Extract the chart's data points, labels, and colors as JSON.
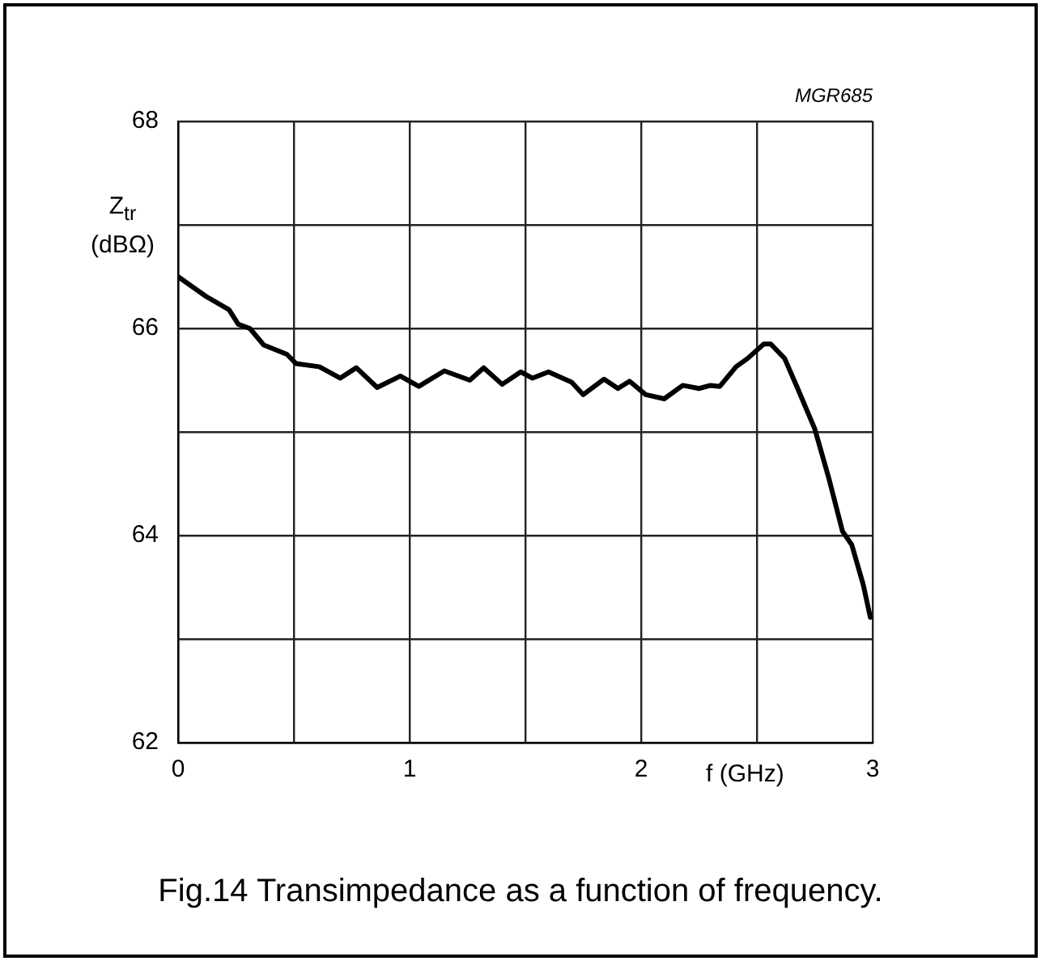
{
  "chart_data": {
    "type": "line",
    "xlabel": "f (GHz)",
    "ylabel": "Z$_{tr}$\n(dBΩ)",
    "annotations": [
      "MGR685",
      "Fig.14  Transimpedance as a function of frequency."
    ],
    "xlim": [
      0,
      3
    ],
    "ylim": [
      62,
      68
    ],
    "xticks": [
      0,
      {
        "value": 0.5,
        "label": null
      },
      1,
      {
        "value": 1.5,
        "label": null
      },
      2,
      {
        "value": 2.5,
        "label": null
      },
      3
    ],
    "yticks": [
      62,
      {
        "value": 63,
        "label": null
      },
      64,
      {
        "value": 65,
        "label": null
      },
      66,
      {
        "value": 67,
        "label": null
      },
      68
    ],
    "grid": true,
    "marker": "none",
    "line_style": "solid",
    "series": [
      {
        "color": "#000000",
        "x": [
          0,
          0.12,
          0.22,
          0.26,
          0.31,
          0.37,
          0.47,
          0.51,
          0.61,
          0.7,
          0.77,
          0.86,
          0.96,
          1.04,
          1.15,
          1.26,
          1.32,
          1.4,
          1.48,
          1.53,
          1.6,
          1.7,
          1.75,
          1.84,
          1.9,
          1.95,
          2.02,
          2.1,
          2.18,
          2.25,
          2.3,
          2.34,
          2.41,
          2.46,
          2.53,
          2.56,
          2.62,
          2.68,
          2.75,
          2.81,
          2.87,
          2.91,
          2.96,
          2.99
        ],
        "values": [
          66.5,
          66.31,
          66.18,
          66.04,
          66.0,
          65.84,
          65.75,
          65.66,
          65.63,
          65.52,
          65.62,
          65.43,
          65.54,
          65.44,
          65.59,
          65.5,
          65.62,
          65.46,
          65.58,
          65.52,
          65.58,
          65.48,
          65.36,
          65.51,
          65.42,
          65.49,
          65.36,
          65.32,
          65.45,
          65.42,
          65.45,
          65.44,
          65.63,
          65.71,
          65.85,
          65.85,
          65.71,
          65.4,
          65.03,
          64.56,
          64.04,
          63.91,
          63.52,
          63.21
        ]
      }
    ]
  }
}
